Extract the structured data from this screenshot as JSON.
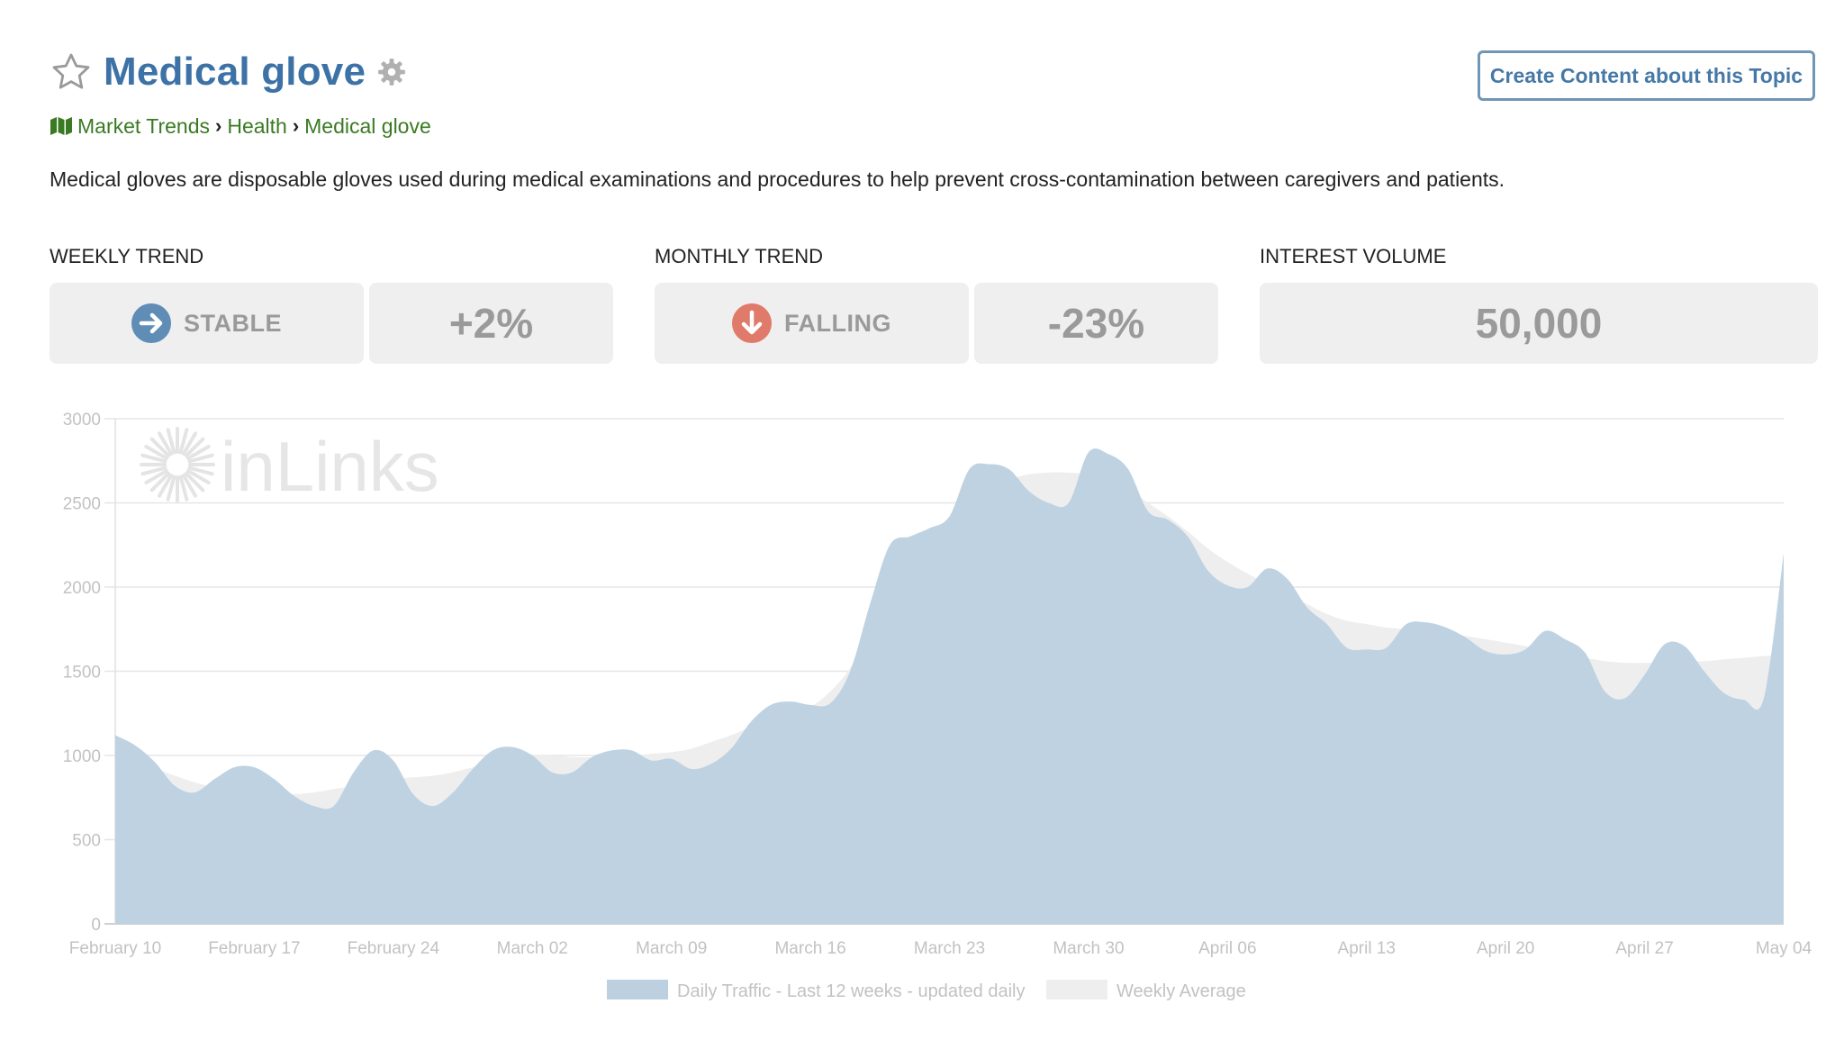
{
  "header": {
    "title": "Medical glove",
    "cta_label": "Create Content about this Topic"
  },
  "breadcrumb": [
    "Market Trends",
    "Health",
    "Medical glove"
  ],
  "description": "Medical gloves are disposable gloves used during medical examinations and procedures to help prevent cross-contamination between caregivers and patients.",
  "metrics": {
    "weekly": {
      "label": "WEEKLY TREND",
      "status": "STABLE",
      "change": "+2%"
    },
    "monthly": {
      "label": "MONTHLY TREND",
      "status": "FALLING",
      "change": "-23%"
    },
    "volume": {
      "label": "INTEREST VOLUME",
      "value": "50,000"
    }
  },
  "icons": {
    "favorite": "star-icon",
    "settings": "gear-icon",
    "breadcrumb": "map-icon",
    "weekly_status": "arrow-right-circle-icon",
    "monthly_status": "arrow-down-circle-icon"
  },
  "colors": {
    "title": "#3d72a6",
    "breadcrumb": "#3a7a23",
    "stable_icon": "#5f8db6",
    "falling_icon": "#e07a6a",
    "daily_fill": "#bcd0df",
    "weekly_fill": "#eeeeee"
  },
  "watermark": "inLinks",
  "chart_data": {
    "type": "area",
    "title": "",
    "xlabel": "",
    "ylabel": "",
    "ylim": [
      0,
      3000
    ],
    "yticks": [
      0,
      500,
      1000,
      1500,
      2000,
      2500,
      3000
    ],
    "x_ticks": [
      "February 10",
      "February 17",
      "February 24",
      "March 02",
      "March 09",
      "March 16",
      "March 23",
      "March 30",
      "April 06",
      "April 13",
      "April 20",
      "April 27",
      "May 04"
    ],
    "grid": true,
    "legend_position": "bottom-center",
    "series": [
      {
        "name": "Daily Traffic - Last 12 weeks - updated daily",
        "color": "#bcd0df",
        "values": [
          1120,
          1060,
          960,
          820,
          780,
          860,
          930,
          930,
          860,
          760,
          700,
          700,
          900,
          1030,
          970,
          770,
          700,
          780,
          920,
          1030,
          1050,
          1000,
          900,
          900,
          990,
          1030,
          1030,
          970,
          980,
          920,
          950,
          1040,
          1200,
          1300,
          1320,
          1300,
          1310,
          1500,
          1900,
          2250,
          2300,
          2350,
          2420,
          2700,
          2730,
          2700,
          2570,
          2500,
          2500,
          2800,
          2790,
          2700,
          2450,
          2400,
          2300,
          2100,
          2010,
          2000,
          2110,
          2050,
          1880,
          1780,
          1640,
          1630,
          1640,
          1780,
          1790,
          1760,
          1700,
          1620,
          1600,
          1630,
          1740,
          1690,
          1610,
          1380,
          1340,
          1480,
          1660,
          1650,
          1500,
          1370,
          1330,
          1340,
          2200
        ]
      },
      {
        "name": "Weekly Average",
        "color": "#eeeeee",
        "values": [
          940,
          930,
          920,
          880,
          840,
          810,
          790,
          780,
          770,
          770,
          780,
          800,
          820,
          840,
          860,
          870,
          880,
          900,
          930,
          960,
          990,
          1000,
          1000,
          990,
          990,
          1000,
          1000,
          1010,
          1020,
          1040,
          1080,
          1120,
          1170,
          1220,
          1260,
          1290,
          1380,
          1520,
          1750,
          1960,
          2130,
          2280,
          2420,
          2520,
          2600,
          2640,
          2670,
          2680,
          2680,
          2670,
          2640,
          2580,
          2500,
          2420,
          2330,
          2230,
          2150,
          2080,
          2020,
          1960,
          1900,
          1840,
          1800,
          1780,
          1760,
          1750,
          1740,
          1730,
          1710,
          1690,
          1670,
          1650,
          1630,
          1600,
          1580,
          1560,
          1550,
          1550,
          1550,
          1560,
          1560,
          1570,
          1580,
          1590,
          1600
        ]
      }
    ]
  }
}
